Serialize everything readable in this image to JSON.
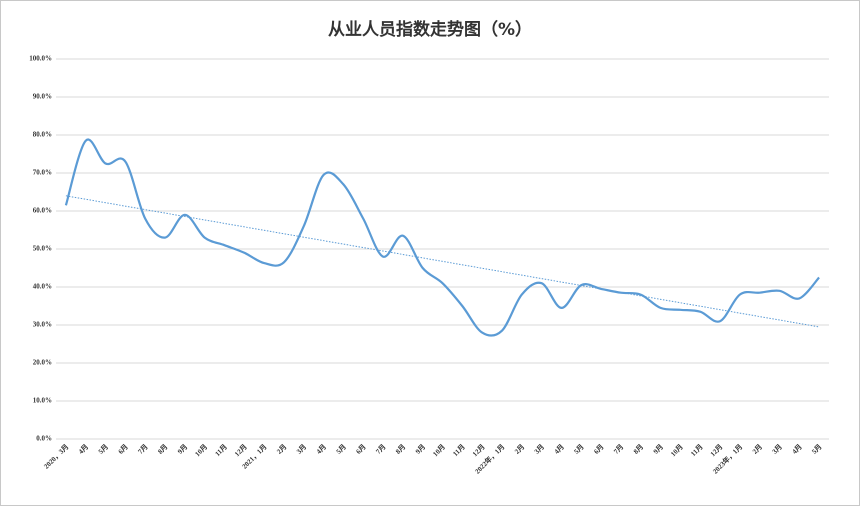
{
  "chart_data": {
    "type": "line",
    "title": "从业人员指数走势图（%）",
    "categories": [
      "2020，3月",
      "4月",
      "5月",
      "6月",
      "7月",
      "8月",
      "9月",
      "10月",
      "11月",
      "12月",
      "2021，1月",
      "2月",
      "3月",
      "4月",
      "5月",
      "6月",
      "7月",
      "8月",
      "9月",
      "10月",
      "11月",
      "12月",
      "2022年，1月",
      "2月",
      "3月",
      "4月",
      "5月",
      "6月",
      "7月",
      "8月",
      "9月",
      "10月",
      "11月",
      "12月",
      "2023年，1月",
      "2月",
      "3月",
      "4月",
      "5月"
    ],
    "series": [
      {
        "color": "#5b9bd5",
        "values": [
          61.5,
          78.5,
          72.5,
          73,
          58,
          53,
          59,
          53,
          51,
          49,
          46.3,
          46.5,
          56,
          69.5,
          67,
          58,
          48,
          53.5,
          45,
          41,
          35,
          28,
          28.5,
          38,
          41,
          34.5,
          40.5,
          39.5,
          38.5,
          38,
          34.5,
          34,
          33.5,
          31,
          38,
          38.5,
          39,
          37,
          42.5
        ]
      }
    ],
    "trendline": {
      "color": "#5b9bd5",
      "values": [
        64,
        29.5
      ]
    },
    "ylim": [
      0,
      100
    ],
    "yticks": [
      {
        "value": 0,
        "label": "0.0%"
      },
      {
        "value": 10,
        "label": "10.0%"
      },
      {
        "value": 20,
        "label": "20.0%"
      },
      {
        "value": 30,
        "label": "30.0%"
      },
      {
        "value": 40,
        "label": "40.0%"
      },
      {
        "value": 50,
        "label": "50.0%"
      },
      {
        "value": 60,
        "label": "60.0%"
      },
      {
        "value": 70,
        "label": "70.0%"
      },
      {
        "value": 80,
        "label": "80.0%"
      },
      {
        "value": 90,
        "label": "90.0%"
      },
      {
        "value": 100,
        "label": "100.0%"
      }
    ],
    "grid": true
  }
}
